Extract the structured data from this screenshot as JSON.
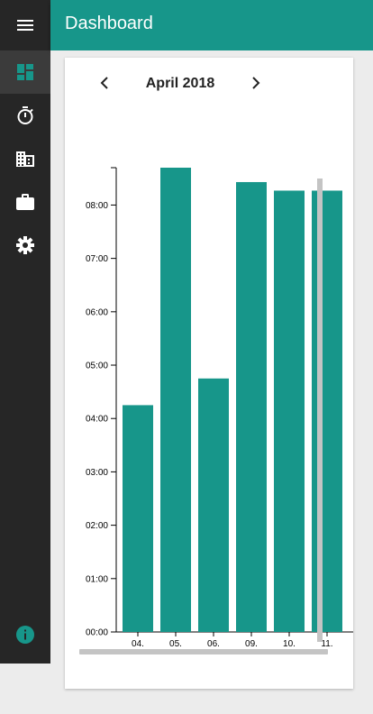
{
  "app": {
    "title": "Dashboard"
  },
  "sidebar": {
    "items": [
      {
        "icon": "dashboard-icon",
        "active": true
      },
      {
        "icon": "timer-icon",
        "active": false
      },
      {
        "icon": "building-icon",
        "active": false
      },
      {
        "icon": "briefcase-icon",
        "active": false
      },
      {
        "icon": "gear-icon",
        "active": false
      }
    ],
    "bottom_icon": "info-icon"
  },
  "calendar": {
    "month_label": "April 2018"
  },
  "colors": {
    "accent": "#17968a",
    "sidebar_bg": "#262626",
    "sidebar_active": "#3b3b3b"
  },
  "chart_data": {
    "type": "bar",
    "categories": [
      "04.",
      "05.",
      "06.",
      "09.",
      "10.",
      "11."
    ],
    "values": [
      4.25,
      8.7,
      4.75,
      8.43,
      8.27,
      8.27
    ],
    "value_unit": "hours",
    "ylim": [
      0,
      8.7
    ],
    "y_ticks": [
      "00:00",
      "01:00",
      "02:00",
      "03:00",
      "04:00",
      "05:00",
      "06:00",
      "07:00",
      "08:00"
    ],
    "grid": false,
    "legend": "none"
  }
}
